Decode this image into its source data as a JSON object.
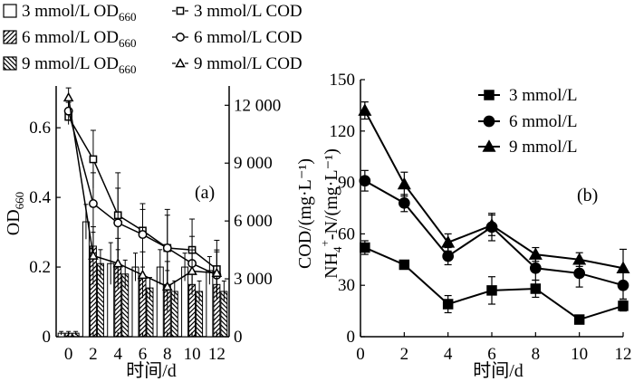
{
  "chart_data": [
    {
      "panel": "(a)",
      "type": "bar",
      "x": [
        0,
        2,
        4,
        6,
        8,
        10,
        12
      ],
      "xlabel": "时间/d",
      "ylabel": "OD660",
      "ylabel_main": "OD",
      "ylabel_sub": "660",
      "y2label": "COD/(mg·L⁻¹)",
      "ylim": [
        0,
        0.72
      ],
      "y2lim": [
        0,
        13000
      ],
      "yticks": [
        "0",
        "0.2",
        "0.4",
        "0.6"
      ],
      "y2ticks": [
        "0",
        "3 000",
        "6 000",
        "9 000",
        "12 000"
      ],
      "xticks": [
        "0",
        "2",
        "4",
        "6",
        "8",
        "10",
        "12"
      ],
      "legend": [
        {
          "text_main": "3 mmol/L OD",
          "text_sub": "660",
          "marker": "bar-open"
        },
        {
          "text_main": "3 mmol/L COD",
          "text_sub": "",
          "marker": "square-open"
        },
        {
          "text_main": "6 mmol/L OD",
          "text_sub": "660",
          "marker": "bar-diag"
        },
        {
          "text_main": "6 mmol/L COD",
          "text_sub": "",
          "marker": "circle-open"
        },
        {
          "text_main": "9 mmol/L OD",
          "text_sub": "660",
          "marker": "bar-backdiag"
        },
        {
          "text_main": "9 mmol/L COD",
          "text_sub": "",
          "marker": "triangle-open"
        }
      ],
      "bar_series": [
        {
          "name": "3 mmol/L OD660",
          "pattern": "open",
          "values": [
            0.01,
            0.33,
            0.21,
            0.2,
            0.2,
            0.2,
            0.19
          ],
          "errors": [
            0.005,
            0.05,
            0.06,
            0.04,
            0.05,
            0.04,
            0.04
          ]
        },
        {
          "name": "6 mmol/L OD660",
          "pattern": "diag",
          "values": [
            0.01,
            0.26,
            0.2,
            0.17,
            0.15,
            0.15,
            0.15
          ],
          "errors": [
            0.005,
            0.04,
            0.05,
            0.03,
            0.04,
            0.03,
            0.03
          ]
        },
        {
          "name": "9 mmol/L OD660",
          "pattern": "backdiag",
          "values": [
            0.01,
            0.21,
            0.18,
            0.14,
            0.13,
            0.13,
            0.13
          ],
          "errors": [
            0.005,
            0.04,
            0.04,
            0.03,
            0.03,
            0.03,
            0.03
          ]
        }
      ],
      "line_series": [
        {
          "name": "3 mmol/L COD",
          "marker": "square-open",
          "values": [
            11400,
            9200,
            6300,
            5500,
            4600,
            4500,
            3500
          ],
          "errors": [
            400,
            1500,
            2200,
            1400,
            2000,
            1600,
            1500
          ]
        },
        {
          "name": "6 mmol/L COD",
          "marker": "circle-open",
          "values": [
            11700,
            6900,
            5900,
            5300,
            4600,
            3800,
            3200
          ],
          "errors": [
            450,
            1600,
            1800,
            1300,
            1700,
            1400,
            1300
          ]
        },
        {
          "name": "9 mmol/L COD",
          "marker": "triangle-open",
          "values": [
            12400,
            4200,
            3800,
            3200,
            2600,
            3400,
            3300
          ],
          "errors": [
            500,
            1500,
            1300,
            1200,
            1300,
            1100,
            1100
          ]
        }
      ],
      "panel_label": "(a)"
    },
    {
      "panel": "(b)",
      "type": "line",
      "x": [
        0.2,
        2,
        4,
        6,
        8,
        10,
        12
      ],
      "xlabel": "时间/d",
      "ylabel_parts": [
        "NH",
        "4",
        "+",
        "-N/(mg·L⁻¹)"
      ],
      "ylim": [
        0,
        150
      ],
      "yticks": [
        "0",
        "30",
        "60",
        "90",
        "120",
        "150"
      ],
      "xticks": [
        "0",
        "2",
        "4",
        "6",
        "8",
        "10",
        "12"
      ],
      "series": [
        {
          "name": "3 mmol/L",
          "marker": "square",
          "values": [
            52,
            42,
            19,
            27,
            28,
            10,
            18
          ],
          "errors": [
            4,
            2,
            5,
            8,
            5,
            2,
            3
          ]
        },
        {
          "name": "6 mmol/L",
          "marker": "circle",
          "values": [
            91,
            78,
            47,
            64,
            40,
            37,
            30
          ],
          "errors": [
            6,
            5,
            5,
            8,
            7,
            8,
            8
          ]
        },
        {
          "name": "9 mmol/L",
          "marker": "triangle",
          "values": [
            132,
            89,
            55,
            65,
            48,
            45,
            40
          ],
          "errors": [
            5,
            7,
            5,
            6,
            4,
            4,
            11
          ]
        }
      ],
      "panel_label": "(b)"
    }
  ]
}
